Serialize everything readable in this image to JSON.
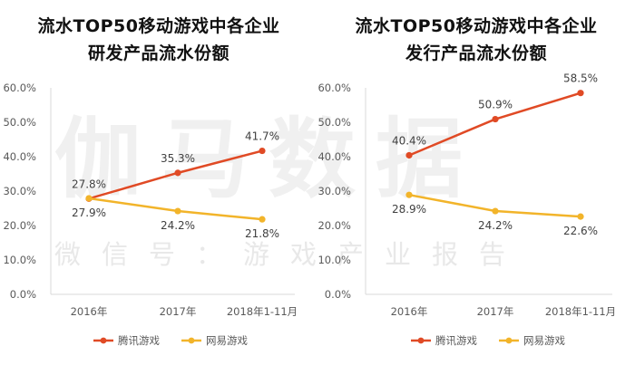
{
  "watermark": {
    "big": "伽马数据",
    "small": "微信号：游戏产业报告"
  },
  "colors": {
    "tencent": "#E04A25",
    "netease": "#F2B42A",
    "axis": "#d9d9d9",
    "text": "#595959"
  },
  "chart_data": [
    {
      "type": "line",
      "title": [
        "流水TOP50移动游戏中各企业",
        "研发产品流水份额"
      ],
      "categories": [
        "2016年",
        "2017年",
        "2018年1-11月"
      ],
      "ylim": [
        0,
        60
      ],
      "yticks": [
        "0.0%",
        "10.0%",
        "20.0%",
        "30.0%",
        "40.0%",
        "50.0%",
        "60.0%"
      ],
      "grid": false,
      "legend": "bottom",
      "series": [
        {
          "name": "腾讯游戏",
          "values": [
            27.8,
            35.3,
            41.7
          ],
          "labels": [
            "27.8%",
            "35.3%",
            "41.7%"
          ],
          "color": "#E04A25"
        },
        {
          "name": "网易游戏",
          "values": [
            27.9,
            24.2,
            21.8
          ],
          "labels": [
            "27.9%",
            "24.2%",
            "21.8%"
          ],
          "color": "#F2B42A"
        }
      ]
    },
    {
      "type": "line",
      "title": [
        "流水TOP50移动游戏中各企业",
        "发行产品流水份额"
      ],
      "categories": [
        "2016年",
        "2017年",
        "2018年1-11月"
      ],
      "ylim": [
        0,
        60
      ],
      "yticks": [
        "0.0%",
        "10.0%",
        "20.0%",
        "30.0%",
        "40.0%",
        "50.0%",
        "60.0%"
      ],
      "grid": false,
      "legend": "bottom",
      "series": [
        {
          "name": "腾讯游戏",
          "values": [
            40.4,
            50.9,
            58.5
          ],
          "labels": [
            "40.4%",
            "50.9%",
            "58.5%"
          ],
          "color": "#E04A25"
        },
        {
          "name": "网易游戏",
          "values": [
            28.9,
            24.2,
            22.6
          ],
          "labels": [
            "28.9%",
            "24.2%",
            "22.6%"
          ],
          "color": "#F2B42A"
        }
      ]
    }
  ]
}
